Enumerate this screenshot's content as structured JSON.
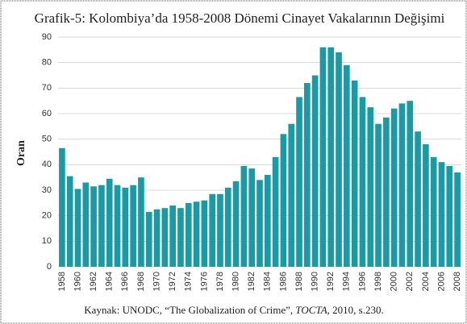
{
  "chart_data": {
    "type": "bar",
    "title": "Grafik-5: Kolombiya’da 1958-2008 Dönemi Cinayet Vakalarının Değişimi",
    "y_label": "Oran",
    "source": {
      "prefix": "Kaynak: UNODC, “The Globalization of Crime”, ",
      "italic": "TOCTA",
      "suffix": ", 2010, s.230."
    },
    "categories": [
      "1958",
      null,
      "1960",
      null,
      "1962",
      null,
      "1964",
      null,
      "1966",
      null,
      "1968",
      null,
      "1970",
      null,
      "1972",
      null,
      "1974",
      null,
      "1976",
      null,
      "1978",
      null,
      "1980",
      null,
      "1982",
      null,
      "1984",
      null,
      "1986",
      null,
      "1988",
      null,
      "1990",
      null,
      "1992",
      null,
      "1994",
      null,
      "1996",
      null,
      "1998",
      null,
      "2000",
      null,
      "2002",
      null,
      "2004",
      null,
      "2006",
      null,
      "2008"
    ],
    "values": [
      46.5,
      35.5,
      30.5,
      33,
      31.5,
      32,
      34.5,
      32,
      31,
      32,
      35,
      21.5,
      22.5,
      23,
      24,
      23,
      25,
      25.5,
      26,
      28.5,
      28.5,
      31,
      33.5,
      39.5,
      38.5,
      34,
      36,
      43,
      52,
      56,
      66.5,
      72,
      75,
      86,
      86,
      84,
      79,
      73,
      66.5,
      62.5,
      56,
      58.5,
      62,
      64,
      65,
      53,
      48,
      43,
      41,
      39.5,
      37
    ],
    "color": "#1a9aa5",
    "ylim": [
      0,
      90
    ],
    "yticks": [
      0,
      10,
      20,
      30,
      40,
      50,
      60,
      70,
      80,
      90
    ],
    "grid": true
  }
}
